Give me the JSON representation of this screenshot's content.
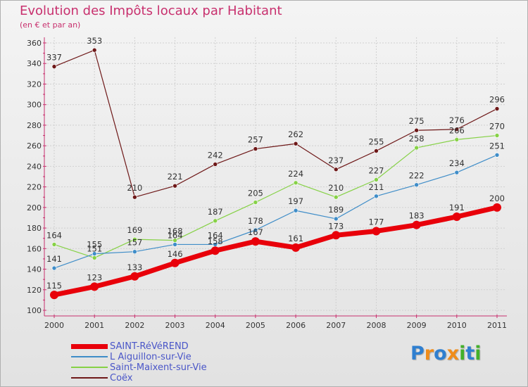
{
  "chart_data": {
    "type": "line",
    "title": "Evolution des Impôts locaux par Habitant",
    "subtitle": "(en € et par an)",
    "xlabel": "",
    "ylabel": "",
    "x": [
      "2000",
      "2001",
      "2002",
      "2003",
      "2004",
      "2005",
      "2006",
      "2007",
      "2008",
      "2009",
      "2010",
      "2011"
    ],
    "ylim": [
      100,
      360
    ],
    "yticks": [
      100,
      120,
      140,
      160,
      180,
      200,
      220,
      240,
      260,
      280,
      300,
      320,
      340,
      360
    ],
    "grid": true,
    "legend_position": "bottom-left",
    "series": [
      {
        "name": "SAINT-RéVéREND",
        "color": "#e8000a",
        "values": [
          115,
          123,
          133,
          146,
          158,
          167,
          161,
          173,
          177,
          183,
          191,
          200
        ]
      },
      {
        "name": "L  Aiguillon-sur-Vie",
        "color": "#3f8dc8",
        "values": [
          141,
          155,
          157,
          164,
          164,
          178,
          197,
          189,
          211,
          222,
          234,
          251
        ]
      },
      {
        "name": "Saint-Maixent-sur-Vie",
        "color": "#86d146",
        "values": [
          164,
          151,
          169,
          168,
          187,
          205,
          224,
          210,
          227,
          258,
          266,
          270
        ]
      },
      {
        "name": "Coëx",
        "color": "#6e1818",
        "values": [
          337,
          353,
          210,
          221,
          242,
          257,
          262,
          237,
          255,
          275,
          276,
          296
        ]
      }
    ]
  },
  "logo": {
    "letters": [
      "P",
      "r",
      "o",
      "x",
      "i",
      "t",
      "i"
    ],
    "colors": [
      "#2f7fd0",
      "#f08c1a",
      "#2f7fd0",
      "#f08c1a",
      "#43b02a",
      "#2f7fd0",
      "#43b02a"
    ]
  }
}
